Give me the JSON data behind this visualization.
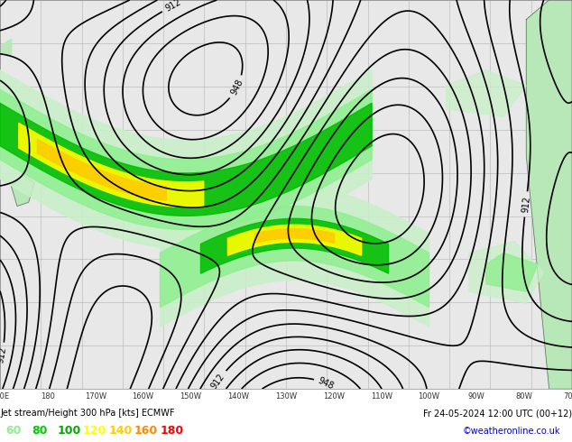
{
  "title": "Jet stream/Height 300 hPa [kts] ECMWF",
  "datetime_label": "Fr 24-05-2024 12:00 UTC (00+12)",
  "credit": "©weatheronline.co.uk",
  "legend_values": [
    "60",
    "80",
    "100",
    "120",
    "140",
    "160",
    "180"
  ],
  "legend_colors": [
    "#90ee90",
    "#00cc00",
    "#00aa00",
    "#ffff00",
    "#ffcc00",
    "#ff8800",
    "#ff0000"
  ],
  "background_color": "#e8e8e8",
  "grid_color": "#aaaaaa",
  "land_color": "#b8e8b8",
  "contour_color": "#000000",
  "title_color": "#000000",
  "datetime_color": "#000000",
  "credit_color": "#0000cc",
  "fig_width": 6.34,
  "fig_height": 4.9,
  "dpi": 100
}
